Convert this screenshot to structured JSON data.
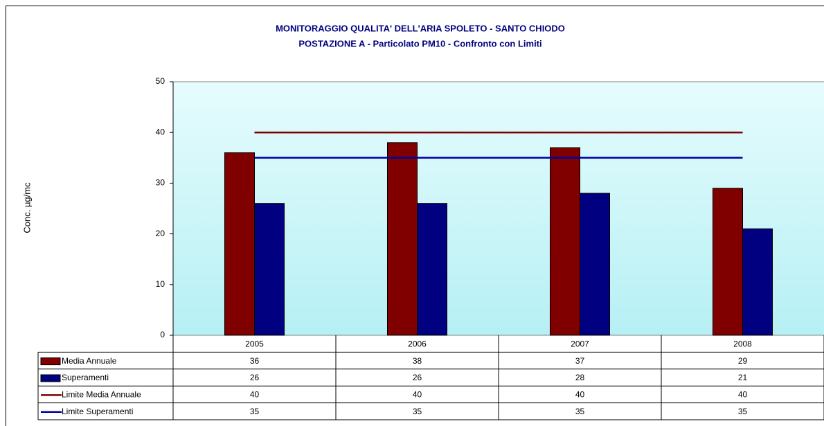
{
  "chart_data": {
    "type": "bar",
    "title": "MONITORAGGIO QUALITA' DELL'ARIA  SPOLETO - SANTO CHIODO",
    "subtitle": "POSTAZIONE A - Particolato PM10 - Confronto con Limiti",
    "ylabel": "Conc. µg/mc",
    "categories": [
      "2005",
      "2006",
      "2007",
      "2008"
    ],
    "series": [
      {
        "name": "Media Annuale",
        "type": "bar",
        "color": "#800000",
        "values": [
          36,
          38,
          37,
          29
        ]
      },
      {
        "name": "Superamenti",
        "type": "bar",
        "color": "#000080",
        "values": [
          26,
          26,
          28,
          21
        ]
      },
      {
        "name": "Limite Media Annuale",
        "type": "line",
        "color": "#800000",
        "values": [
          40,
          40,
          40,
          40
        ]
      },
      {
        "name": "Limite Superamenti",
        "type": "line",
        "color": "#0000a0",
        "values": [
          35,
          35,
          35,
          35
        ]
      }
    ],
    "ylim": [
      0,
      50
    ],
    "yticks": [
      0,
      10,
      20,
      30,
      40,
      50
    ],
    "data_table": true
  }
}
